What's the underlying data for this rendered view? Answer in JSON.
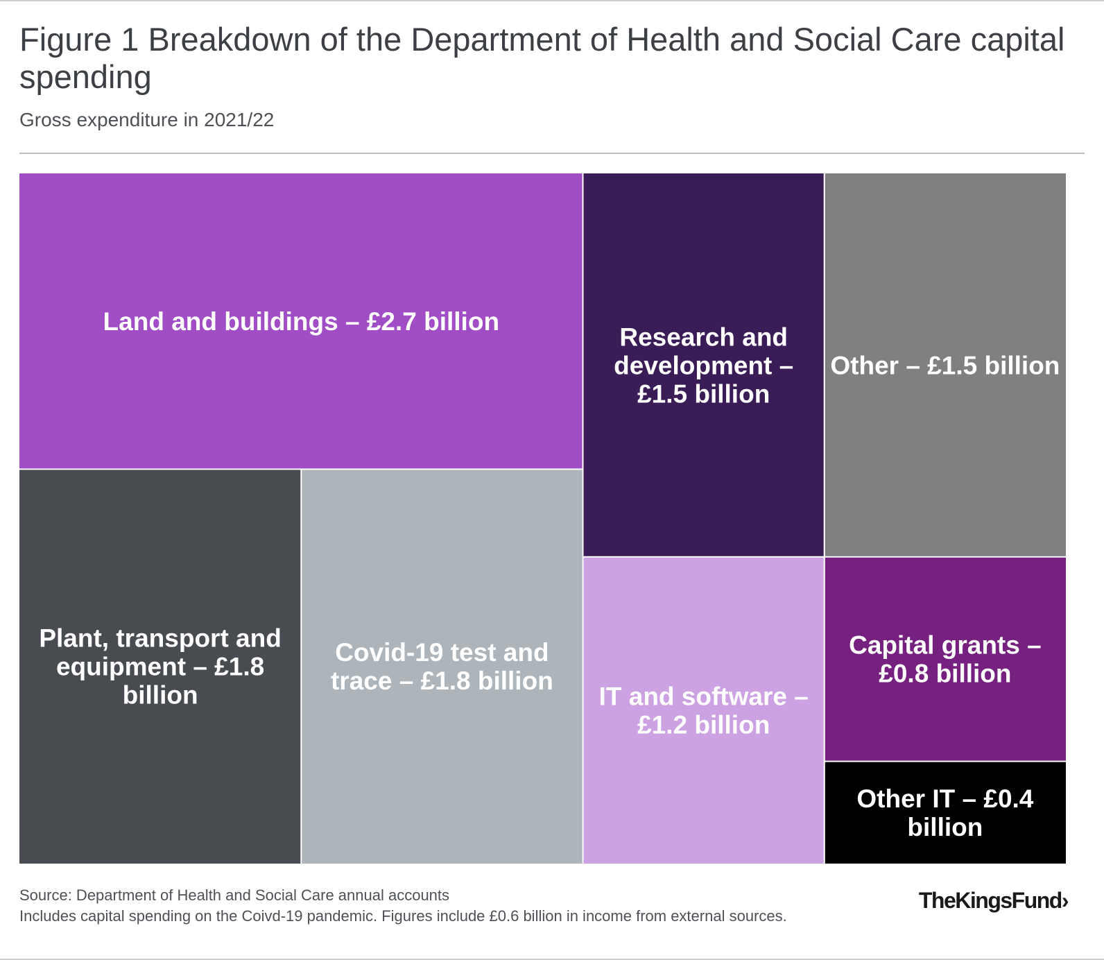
{
  "chart_data": {
    "type": "treemap",
    "title": "Figure 1 Breakdown of the Department of Health and Social Care capital spending",
    "subtitle": "Gross expenditure in 2021/22",
    "unit": "£ billion",
    "items": [
      {
        "name": "Land and buildings",
        "value": 2.7,
        "label": "Land and buildings – £2.7 billion",
        "color": "#a04dc6"
      },
      {
        "name": "Plant, transport and equipment",
        "value": 1.8,
        "label": "Plant, transport and equipment – £1.8 billion",
        "color": "#484b50"
      },
      {
        "name": "Covid-19 test and trace",
        "value": 1.8,
        "label": "Covid-19 test and trace – £1.8 billion",
        "color": "#adb5bb"
      },
      {
        "name": "Research and development",
        "value": 1.5,
        "label": "Research and development – £1.5 billion",
        "color": "#3a1c57"
      },
      {
        "name": "Other",
        "value": 1.5,
        "label": "Other – £1.5 billion",
        "color": "#808080"
      },
      {
        "name": "IT and software",
        "value": 1.2,
        "label": "IT and software – £1.2 billion",
        "color": "#cda2e3"
      },
      {
        "name": "Capital grants",
        "value": 0.8,
        "label": "Capital grants – £0.8 billion",
        "color": "#76207f"
      },
      {
        "name": "Other IT",
        "value": 0.4,
        "label": "Other IT – £0.4 billion",
        "color": "#000000"
      }
    ]
  },
  "footer": {
    "source": "Source: Department of Health and Social Care annual accounts",
    "note": "Includes capital spending on the Coivd-19 pandemic. Figures include £0.6 billion in income from external sources."
  },
  "logo": {
    "text": "TheKingsFund›"
  }
}
